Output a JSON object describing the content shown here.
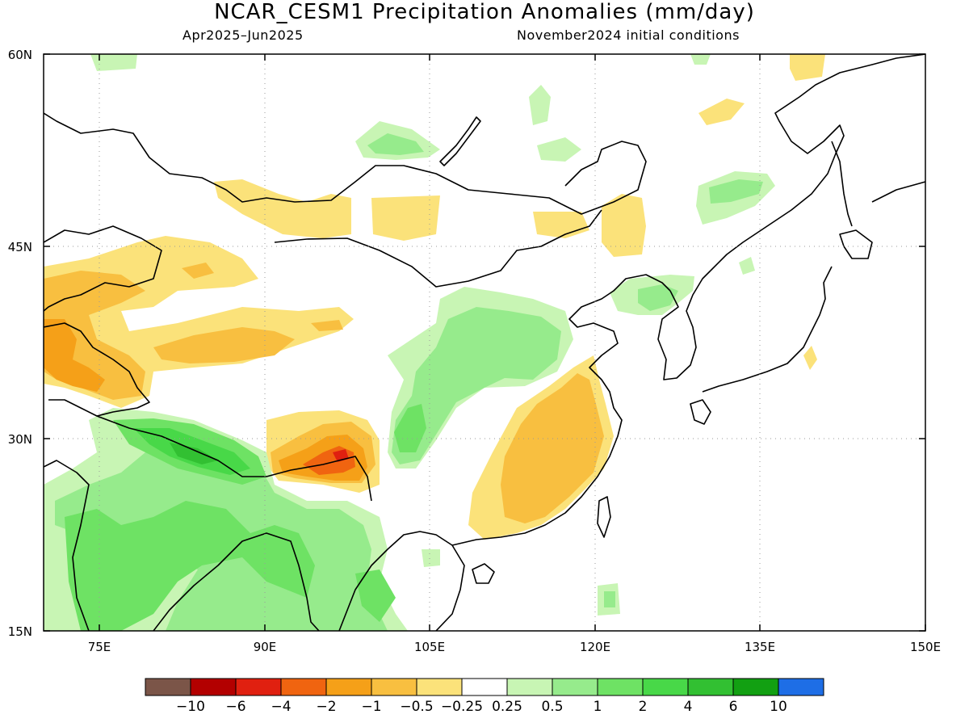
{
  "title": "NCAR_CESM1 Precipitation Anomalies (mm/day)",
  "period": "Apr2025–Jun2025",
  "initial_conditions": "November2024 initial conditions",
  "lat_ticks": [
    "60N",
    "45N",
    "30N",
    "15N"
  ],
  "lon_ticks": [
    "75E",
    "90E",
    "105E",
    "120E",
    "135E",
    "150E"
  ],
  "colorbar": {
    "colors": [
      "#7b5548",
      "#b30000",
      "#e02010",
      "#f06410",
      "#f5a018",
      "#f8bf40",
      "#fbe27a",
      "#ffffff",
      "#c8f5b4",
      "#96eb8c",
      "#6ee264",
      "#48d848",
      "#32c032",
      "#12a012",
      "#1e6ee6"
    ],
    "labels": [
      "−10",
      "−6",
      "−4",
      "−2",
      "−1",
      "−0.5",
      "−0.25",
      "0.25",
      "0.5",
      "1",
      "2",
      "4",
      "6",
      "10"
    ]
  },
  "map": {
    "extent": {
      "lon_min": 70,
      "lon_max": 150,
      "lat_min": 15,
      "lat_max": 60
    },
    "anomaly_regions": [
      {
        "name": "southwest-china-wet-lobe",
        "level": "0.5 to 1"
      },
      {
        "name": "himalaya-foothills-wet-band",
        "level": "2 to 4"
      },
      {
        "name": "india-wet-region",
        "level": "0.5 to 2"
      },
      {
        "name": "tibet-southeast-dry-core",
        "level": "-2 to -4"
      },
      {
        "name": "southeast-china-dry-region",
        "level": "-0.5 to -1"
      },
      {
        "name": "northwest-dry-region",
        "level": "-0.5 to -1"
      },
      {
        "name": "mongolia-dry-patches",
        "level": "-0.25 to -0.5"
      },
      {
        "name": "northeast-wet-patches",
        "level": "0.25 to 0.5"
      }
    ]
  }
}
